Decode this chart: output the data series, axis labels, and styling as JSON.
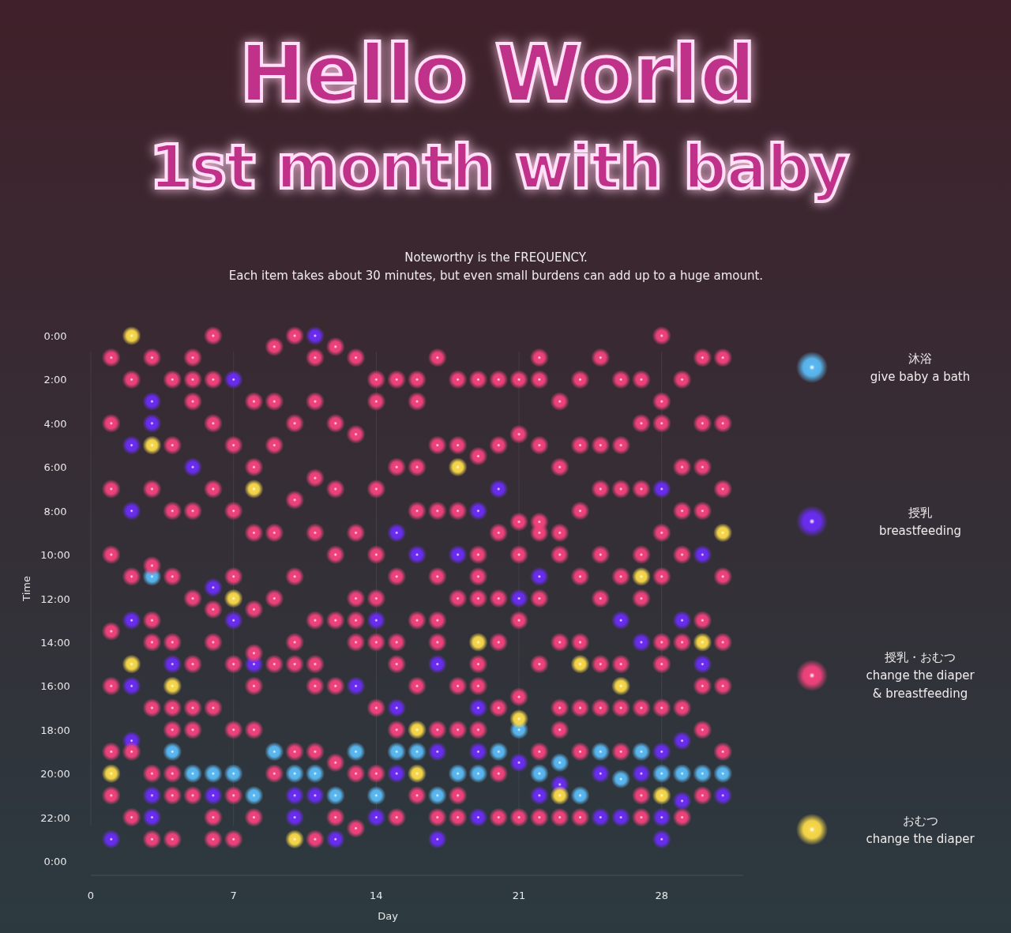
{
  "chart_data": {
    "type": "scatter",
    "title": "Hello World",
    "subtitle": "1st month with baby",
    "annotations": [
      "Noteworthy is the FREQUENCY.",
      "Each item takes about 30 minutes, but even small burdens can add up to a huge amount."
    ],
    "xlabel": "Day",
    "ylabel": "Time",
    "xlim": [
      0,
      32
    ],
    "xticks": [
      0,
      7,
      14,
      21,
      28
    ],
    "ylim": [
      24,
      0
    ],
    "yticks": [
      {
        "value": 0,
        "label": "0:00"
      },
      {
        "value": 2,
        "label": "2:00"
      },
      {
        "value": 4,
        "label": "4:00"
      },
      {
        "value": 6,
        "label": "6:00"
      },
      {
        "value": 8,
        "label": "8:00"
      },
      {
        "value": 10,
        "label": "10:00"
      },
      {
        "value": 12,
        "label": "12:00"
      },
      {
        "value": 14,
        "label": "14:00"
      },
      {
        "value": 16,
        "label": "16:00"
      },
      {
        "value": 18,
        "label": "18:00"
      },
      {
        "value": 20,
        "label": "20:00"
      },
      {
        "value": 22,
        "label": "22:00"
      },
      {
        "value": 24,
        "label": "0:00"
      }
    ],
    "grid": "x",
    "legend": "right",
    "marker": "circle",
    "series": [
      {
        "name": "沐浴\ngive baby a bath",
        "color": "#5ab8f2",
        "x": [
          3,
          4,
          9,
          13,
          15,
          16,
          20,
          25,
          27,
          23,
          5,
          6,
          7,
          10,
          11,
          18,
          19,
          22,
          28,
          29,
          30,
          31,
          26,
          8,
          12,
          14,
          17,
          24,
          21
        ],
        "values": [
          11,
          19,
          19,
          19,
          19,
          19,
          19,
          19,
          19,
          19.5,
          20,
          20,
          20,
          20,
          20,
          20,
          20,
          20,
          20,
          20,
          20,
          20,
          20.25,
          21,
          21,
          21,
          21,
          21,
          18
        ]
      },
      {
        "name": "授乳\nbreastfeeding",
        "color": "#6a2cf2",
        "x": [
          11,
          7,
          3,
          3,
          2,
          5,
          2,
          20,
          28,
          19,
          15,
          16,
          18,
          30,
          22,
          6,
          21,
          2,
          7,
          14,
          26,
          29,
          27,
          4,
          8,
          17,
          30,
          2,
          13,
          15,
          19,
          2,
          29,
          17,
          19,
          28,
          21,
          15,
          25,
          27,
          23,
          3,
          6,
          10,
          11,
          22,
          31,
          29,
          3,
          10,
          14,
          19,
          25,
          26,
          28,
          1,
          12,
          17,
          28
        ],
        "values": [
          0,
          2,
          3,
          4,
          5,
          6,
          8,
          7,
          7,
          8,
          9,
          10,
          10,
          10,
          11,
          11.5,
          12,
          13,
          13,
          13,
          13,
          13,
          14,
          15,
          15,
          15,
          15,
          16,
          16,
          17,
          17,
          18.5,
          18.5,
          19,
          19,
          19,
          19.5,
          20,
          20,
          20,
          20.5,
          21,
          21,
          21,
          21,
          21,
          21,
          21.25,
          22,
          22,
          22,
          22,
          22,
          22,
          22,
          23,
          23,
          23,
          23
        ]
      },
      {
        "name": "授乳・おむつ\nchange the diaper\n& breastfeeding",
        "color": "#f0427c",
        "x": [
          6,
          10,
          28,
          9,
          12,
          1,
          3,
          5,
          11,
          13,
          17,
          22,
          25,
          30,
          31,
          2,
          4,
          5,
          6,
          14,
          15,
          16,
          18,
          19,
          20,
          21,
          22,
          24,
          26,
          27,
          29,
          5,
          8,
          9,
          11,
          14,
          16,
          23,
          28,
          1,
          6,
          10,
          12,
          27,
          28,
          30,
          31,
          13,
          21,
          4,
          7,
          9,
          17,
          18,
          20,
          22,
          24,
          25,
          26,
          19,
          8,
          15,
          16,
          23,
          29,
          30,
          11,
          1,
          3,
          6,
          12,
          14,
          25,
          26,
          27,
          31,
          10,
          4,
          5,
          7,
          16,
          17,
          18,
          24,
          29,
          30,
          21,
          22,
          8,
          9,
          11,
          13,
          20,
          22,
          23,
          28,
          1,
          12,
          14,
          19,
          21,
          23,
          25,
          27,
          29,
          3,
          2,
          4,
          7,
          10,
          15,
          17,
          19,
          24,
          26,
          28,
          31,
          5,
          9,
          13,
          14,
          18,
          19,
          20,
          22,
          25,
          27,
          6,
          8,
          3,
          11,
          12,
          13,
          16,
          17,
          21,
          30,
          1,
          3,
          4,
          6,
          10,
          13,
          14,
          15,
          17,
          20,
          23,
          24,
          28,
          29,
          31,
          8,
          5,
          7,
          9,
          10,
          11,
          15,
          19,
          22,
          25,
          26,
          28,
          1,
          8,
          11,
          12,
          16,
          18,
          19,
          30,
          31,
          21,
          3,
          4,
          5,
          6,
          14,
          20,
          23,
          24,
          25,
          26,
          27,
          28,
          29,
          4,
          5,
          7,
          8,
          15,
          17,
          18,
          19,
          23,
          30,
          1,
          2,
          10,
          11,
          22,
          24,
          26,
          31,
          12,
          3,
          4,
          9,
          13,
          14,
          20,
          1,
          4,
          5,
          7,
          16,
          18,
          27,
          30,
          2,
          6,
          8,
          12,
          15,
          17,
          18,
          20,
          21,
          22,
          23,
          24,
          27,
          29,
          13,
          3,
          4,
          6,
          7,
          11
        ],
        "values": [
          0,
          0,
          0,
          0.5,
          0.5,
          1,
          1,
          1,
          1,
          1,
          1,
          1,
          1,
          1,
          1,
          2,
          2,
          2,
          2,
          2,
          2,
          2,
          2,
          2,
          2,
          2,
          2,
          2,
          2,
          2,
          2,
          3,
          3,
          3,
          3,
          3,
          3,
          3,
          3,
          4,
          4,
          4,
          4,
          4,
          4,
          4,
          4,
          4.5,
          4.5,
          5,
          5,
          5,
          5,
          5,
          5,
          5,
          5,
          5,
          5,
          5.5,
          6,
          6,
          6,
          6,
          6,
          6,
          6.5,
          7,
          7,
          7,
          7,
          7,
          7,
          7,
          7,
          7,
          7.5,
          8,
          8,
          8,
          8,
          8,
          8,
          8,
          8,
          8,
          8.5,
          8.5,
          9,
          9,
          9,
          9,
          9,
          9,
          9,
          9,
          10,
          10,
          10,
          10,
          10,
          10,
          10,
          10,
          10,
          10.5,
          11,
          11,
          11,
          11,
          11,
          11,
          11,
          11,
          11,
          11,
          11,
          12,
          12,
          12,
          12,
          12,
          12,
          12,
          12,
          12,
          12,
          12.5,
          12.5,
          13,
          13,
          13,
          13,
          13,
          13,
          13,
          13,
          13.5,
          14,
          14,
          14,
          14,
          14,
          14,
          14,
          14,
          14,
          14,
          14,
          14,
          14,
          14,
          14.5,
          15,
          15,
          15,
          15,
          15,
          15,
          15,
          15,
          15,
          15,
          15,
          16,
          16,
          16,
          16,
          16,
          16,
          16,
          16,
          16,
          16.5,
          17,
          17,
          17,
          17,
          17,
          17,
          17,
          17,
          17,
          17,
          17,
          17,
          17,
          18,
          18,
          18,
          18,
          18,
          18,
          18,
          18,
          18,
          18,
          19,
          19,
          19,
          19,
          19,
          19,
          19,
          19,
          19.5,
          20,
          20,
          20,
          20,
          20,
          20,
          21,
          21,
          21,
          21,
          21,
          21,
          21,
          21,
          22,
          22,
          22,
          22,
          22,
          22,
          22,
          22,
          22,
          22,
          22,
          22,
          22,
          22,
          22.5,
          23,
          23,
          23,
          23,
          23
        ]
      },
      {
        "name": "おむつ\nchange the diaper",
        "color": "#f8d84a",
        "x": [
          2,
          3,
          18,
          8,
          31,
          27,
          7,
          19,
          30,
          2,
          24,
          4,
          26,
          21,
          16,
          1,
          16,
          23,
          28,
          10
        ],
        "values": [
          0,
          5,
          6,
          7,
          9,
          11,
          12,
          14,
          14,
          15,
          15,
          16,
          16,
          17.5,
          18,
          20,
          20,
          21,
          21,
          23
        ]
      }
    ]
  }
}
